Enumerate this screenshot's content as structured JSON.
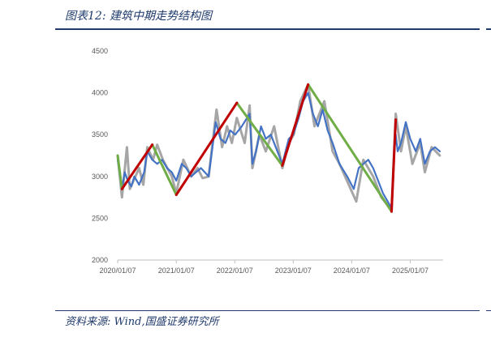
{
  "header": {
    "title": "图表12:  建筑中期走势结构图"
  },
  "footer": {
    "source": "资料来源:  Wind,国盛证券研究所"
  },
  "chart_data": {
    "type": "line",
    "title": "",
    "xlabel": "",
    "ylabel": "",
    "ylim": [
      2000,
      4500
    ],
    "yticks": [
      2000,
      2500,
      3000,
      3500,
      4000,
      4500
    ],
    "xtick_labels": [
      "2020/01/07",
      "2021/01/07",
      "2022/01/07",
      "2023/01/07",
      "2024/01/07",
      "2025/01/07"
    ],
    "grid": false,
    "legend": "none",
    "series": [
      {
        "style": "index",
        "color": "#4472c4",
        "points": [
          [
            "2020/01/07",
            3200
          ],
          [
            "2020/02/03",
            2850
          ],
          [
            "2020/02/20",
            3050
          ],
          [
            "2020/03/10",
            2950
          ],
          [
            "2020/04/01",
            2880
          ],
          [
            "2020/04/20",
            3000
          ],
          [
            "2020/05/20",
            2900
          ],
          [
            "2020/06/20",
            3050
          ],
          [
            "2020/07/10",
            3300
          ],
          [
            "2020/08/10",
            3200
          ],
          [
            "2020/09/10",
            3150
          ],
          [
            "2020/10/10",
            3200
          ],
          [
            "2020/11/10",
            3100
          ],
          [
            "2020/12/10",
            3050
          ],
          [
            "2021/01/07",
            2950
          ],
          [
            "2021/02/10",
            3150
          ],
          [
            "2021/03/10",
            3100
          ],
          [
            "2021/04/10",
            3000
          ],
          [
            "2021/05/10",
            3050
          ],
          [
            "2021/06/10",
            3100
          ],
          [
            "2021/07/28",
            3000
          ],
          [
            "2021/09/10",
            3650
          ],
          [
            "2021/10/10",
            3450
          ],
          [
            "2021/11/10",
            3400
          ],
          [
            "2021/12/10",
            3550
          ],
          [
            "2022/01/10",
            3500
          ],
          [
            "2022/02/20",
            3600
          ],
          [
            "2022/04/10",
            3750
          ],
          [
            "2022/04/27",
            3150
          ],
          [
            "2022/05/20",
            3300
          ],
          [
            "2022/06/20",
            3600
          ],
          [
            "2022/07/20",
            3450
          ],
          [
            "2022/08/20",
            3500
          ],
          [
            "2022/09/20",
            3350
          ],
          [
            "2022/10/31",
            3150
          ],
          [
            "2022/12/10",
            3450
          ],
          [
            "2023/01/07",
            3500
          ],
          [
            "2023/02/10",
            3700
          ],
          [
            "2023/03/10",
            3900
          ],
          [
            "2023/04/10",
            4000
          ],
          [
            "2023/05/10",
            3750
          ],
          [
            "2023/06/10",
            3600
          ],
          [
            "2023/07/10",
            3800
          ],
          [
            "2023/08/10",
            3550
          ],
          [
            "2023/09/10",
            3400
          ],
          [
            "2023/10/23",
            3150
          ],
          [
            "2023/12/10",
            3000
          ],
          [
            "2024/01/20",
            2850
          ],
          [
            "2024/02/20",
            3100
          ],
          [
            "2024/03/20",
            3150
          ],
          [
            "2024/04/20",
            3200
          ],
          [
            "2024/05/20",
            3100
          ],
          [
            "2024/06/20",
            2950
          ],
          [
            "2024/07/20",
            2800
          ],
          [
            "2024/09/12",
            2620
          ],
          [
            "2024/09/25",
            3200
          ],
          [
            "2024/10/08",
            3500
          ],
          [
            "2024/10/20",
            3300
          ],
          [
            "2024/11/10",
            3400
          ],
          [
            "2024/12/10",
            3650
          ],
          [
            "2025/01/07",
            3450
          ],
          [
            "2025/02/10",
            3300
          ],
          [
            "2025/03/10",
            3450
          ],
          [
            "2025/04/08",
            3150
          ],
          [
            "2025/05/10",
            3300
          ],
          [
            "2025/06/10",
            3350
          ],
          [
            "2025/07/10",
            3300
          ]
        ]
      },
      {
        "style": "swing",
        "color": "#a6a6a6",
        "points": [
          [
            "2020/01/07",
            3250
          ],
          [
            "2020/02/03",
            2750
          ],
          [
            "2020/03/05",
            3350
          ],
          [
            "2020/03/23",
            2850
          ],
          [
            "2020/05/20",
            3100
          ],
          [
            "2020/06/15",
            2900
          ],
          [
            "2020/07/10",
            3350
          ],
          [
            "2020/08/15",
            3200
          ],
          [
            "2020/09/10",
            3380
          ],
          [
            "2020/10/15",
            3200
          ],
          [
            "2020/12/10",
            3000
          ],
          [
            "2021/01/07",
            2800
          ],
          [
            "2021/02/20",
            3200
          ],
          [
            "2021/04/10",
            3000
          ],
          [
            "2021/05/20",
            3100
          ],
          [
            "2021/06/20",
            2980
          ],
          [
            "2021/07/28",
            3000
          ],
          [
            "2021/09/15",
            3800
          ],
          [
            "2021/10/20",
            3350
          ],
          [
            "2021/11/20",
            3600
          ],
          [
            "2021/12/20",
            3400
          ],
          [
            "2022/01/20",
            3700
          ],
          [
            "2022/03/10",
            3400
          ],
          [
            "2022/04/10",
            3850
          ],
          [
            "2022/04/27",
            3100
          ],
          [
            "2022/06/10",
            3500
          ],
          [
            "2022/07/20",
            3300
          ],
          [
            "2022/09/10",
            3600
          ],
          [
            "2022/10/31",
            3100
          ],
          [
            "2022/12/10",
            3400
          ],
          [
            "2023/01/10",
            3500
          ],
          [
            "2023/02/20",
            3900
          ],
          [
            "2023/04/10",
            4100
          ],
          [
            "2023/05/20",
            3600
          ],
          [
            "2023/07/20",
            3900
          ],
          [
            "2023/09/10",
            3300
          ],
          [
            "2023/10/23",
            3150
          ],
          [
            "2023/12/20",
            2900
          ],
          [
            "2024/02/05",
            2700
          ],
          [
            "2024/03/20",
            3200
          ],
          [
            "2024/05/20",
            3000
          ],
          [
            "2024/07/10",
            2750
          ],
          [
            "2024/09/12",
            2600
          ],
          [
            "2024/10/08",
            3750
          ],
          [
            "2024/11/10",
            3300
          ],
          [
            "2024/12/10",
            3600
          ],
          [
            "2025/01/20",
            3150
          ],
          [
            "2025/03/10",
            3400
          ],
          [
            "2025/04/08",
            3050
          ],
          [
            "2025/05/20",
            3350
          ],
          [
            "2025/07/10",
            3250
          ]
        ]
      },
      {
        "style": "uptrend",
        "color": "#c00000",
        "segments": [
          [
            [
              "2020/02/03",
              2850
            ],
            [
              "2020/08/10",
              3380
            ]
          ],
          [
            [
              "2021/01/07",
              2780
            ],
            [
              "2022/01/20",
              3880
            ]
          ],
          [
            [
              "2022/10/31",
              3130
            ],
            [
              "2023/04/10",
              4100
            ]
          ],
          [
            [
              "2024/09/12",
              2580
            ],
            [
              "2024/10/08",
              3680
            ]
          ]
        ]
      },
      {
        "style": "downtrend",
        "color": "#70ad47",
        "segments": [
          [
            [
              "2020/01/07",
              3250
            ],
            [
              "2020/02/03",
              2850
            ]
          ],
          [
            [
              "2020/08/10",
              3380
            ],
            [
              "2021/01/07",
              2780
            ]
          ],
          [
            [
              "2022/01/20",
              3880
            ],
            [
              "2022/10/31",
              3130
            ]
          ],
          [
            [
              "2023/04/10",
              4100
            ],
            [
              "2024/09/12",
              2580
            ]
          ]
        ]
      }
    ]
  }
}
